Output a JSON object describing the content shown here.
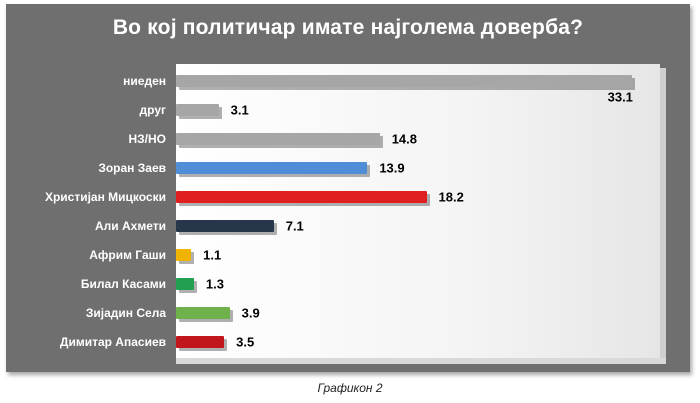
{
  "chart_data": {
    "type": "bar",
    "orientation": "horizontal",
    "title": "Во кој политичар имате најголема доверба?",
    "categories": [
      "ниеден",
      "друг",
      "НЗ/НО",
      "Зоран Заев",
      "Христијан Мицкоски",
      "Али Ахмети",
      "Африм Гаши",
      "Билал Касами",
      "Зијадин Села",
      "Димитар Апасиев"
    ],
    "values": [
      33.1,
      3.1,
      14.8,
      13.9,
      18.2,
      7.1,
      1.1,
      1.3,
      3.9,
      3.5
    ],
    "value_labels": [
      "33.1",
      "3.1",
      "14.8",
      "13.9",
      "18.2",
      "7.1",
      "1.1",
      "1.3",
      "3.9",
      "3.5"
    ],
    "colors": [
      "#a6a6a6",
      "#a6a6a6",
      "#a6a6a6",
      "#4f8ed6",
      "#e02020",
      "#27364a",
      "#f0b400",
      "#20a050",
      "#6fb14a",
      "#c0161c"
    ],
    "xlim": [
      0,
      34
    ],
    "grid": false,
    "legend": "none"
  },
  "caption": "Графикон 2"
}
